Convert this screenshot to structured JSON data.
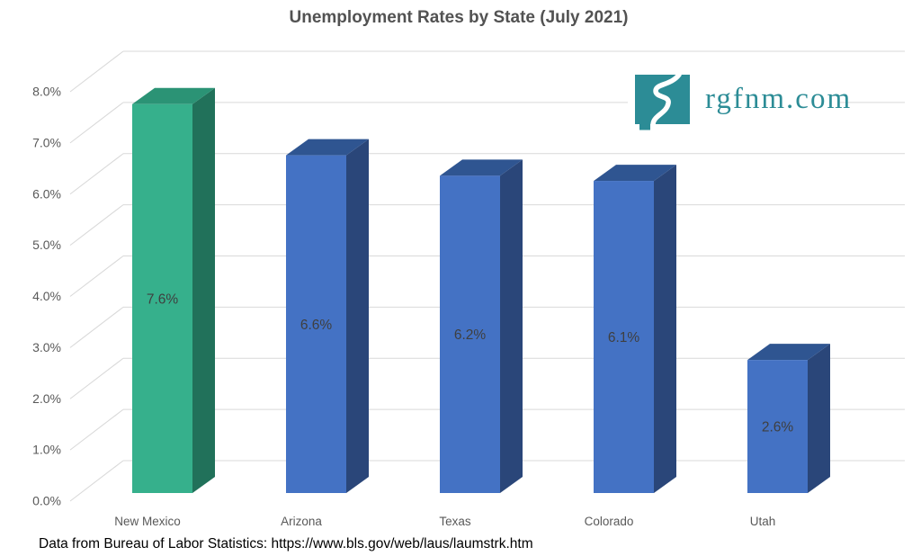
{
  "title": "Unemployment Rates by State (July 2021)",
  "footer": "Data from Bureau of Labor Statistics: https://www.bls.gov/web/laus/laumstrk.htm",
  "logo": {
    "text": "rgfnm.com",
    "color": "#2C8C96",
    "river_color": "#ffffff"
  },
  "colors": {
    "grid": "#D9D9D9",
    "axis_label": "#595959",
    "value_label": "#3F3F3F",
    "title": "#525252"
  },
  "chart_data": {
    "type": "bar",
    "style": "3d-column",
    "title": "Unemployment Rates by State (July 2021)",
    "categories": [
      "New Mexico",
      "Arizona",
      "Texas",
      "Colorado",
      "Utah"
    ],
    "values": [
      7.6,
      6.6,
      6.2,
      6.1,
      2.6
    ],
    "value_labels": [
      "7.6%",
      "6.6%",
      "6.2%",
      "6.1%",
      "2.6%"
    ],
    "xlabel": "",
    "ylabel": "",
    "ylim": [
      0,
      8
    ],
    "ytick_step": 1,
    "ytick_labels": [
      "0.0%",
      "1.0%",
      "2.0%",
      "3.0%",
      "4.0%",
      "5.0%",
      "6.0%",
      "7.0%",
      "8.0%"
    ],
    "grid": true,
    "legend": false,
    "bar_styles": [
      {
        "front": "#36B08C",
        "top": "#2B9375",
        "side": "#21715A"
      },
      {
        "front": "#4472C4",
        "top": "#2F5591",
        "side": "#2A4679"
      },
      {
        "front": "#4472C4",
        "top": "#2F5591",
        "side": "#2A4679"
      },
      {
        "front": "#4472C4",
        "top": "#2F5591",
        "side": "#2A4679"
      },
      {
        "front": "#4472C4",
        "top": "#2F5591",
        "side": "#2A4679"
      }
    ]
  }
}
